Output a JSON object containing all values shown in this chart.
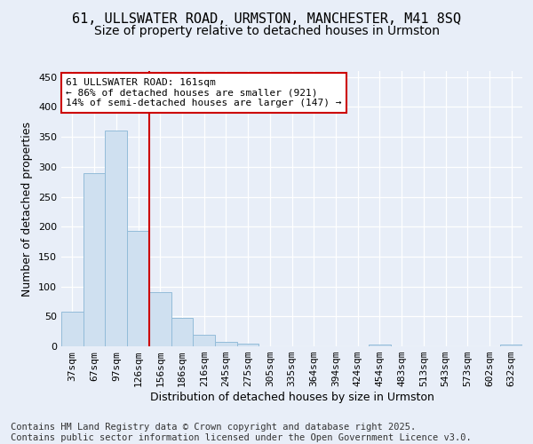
{
  "title1": "61, ULLSWATER ROAD, URMSTON, MANCHESTER, M41 8SQ",
  "title2": "Size of property relative to detached houses in Urmston",
  "xlabel": "Distribution of detached houses by size in Urmston",
  "ylabel": "Number of detached properties",
  "footnote": "Contains HM Land Registry data © Crown copyright and database right 2025.\nContains public sector information licensed under the Open Government Licence v3.0.",
  "bins": [
    "37sqm",
    "67sqm",
    "97sqm",
    "126sqm",
    "156sqm",
    "186sqm",
    "216sqm",
    "245sqm",
    "275sqm",
    "305sqm",
    "335sqm",
    "364sqm",
    "394sqm",
    "424sqm",
    "454sqm",
    "483sqm",
    "513sqm",
    "543sqm",
    "573sqm",
    "602sqm",
    "632sqm"
  ],
  "values": [
    58,
    290,
    360,
    193,
    90,
    48,
    20,
    8,
    5,
    0,
    0,
    0,
    0,
    0,
    3,
    0,
    0,
    0,
    0,
    0,
    3
  ],
  "bar_color": "#cfe0f0",
  "bar_edge_color": "#93bcd9",
  "vline_color": "#cc0000",
  "annotation_text": "61 ULLSWATER ROAD: 161sqm\n← 86% of detached houses are smaller (921)\n14% of semi-detached houses are larger (147) →",
  "annotation_box_color": "#ffffff",
  "annotation_box_edge": "#cc0000",
  "ylim": [
    0,
    460
  ],
  "yticks": [
    0,
    50,
    100,
    150,
    200,
    250,
    300,
    350,
    400,
    450
  ],
  "background_color": "#e8eef8",
  "plot_background": "#e8eef8",
  "title_fontsize": 11,
  "subtitle_fontsize": 10,
  "axis_label_fontsize": 9,
  "tick_fontsize": 8,
  "footnote_fontsize": 7.5
}
